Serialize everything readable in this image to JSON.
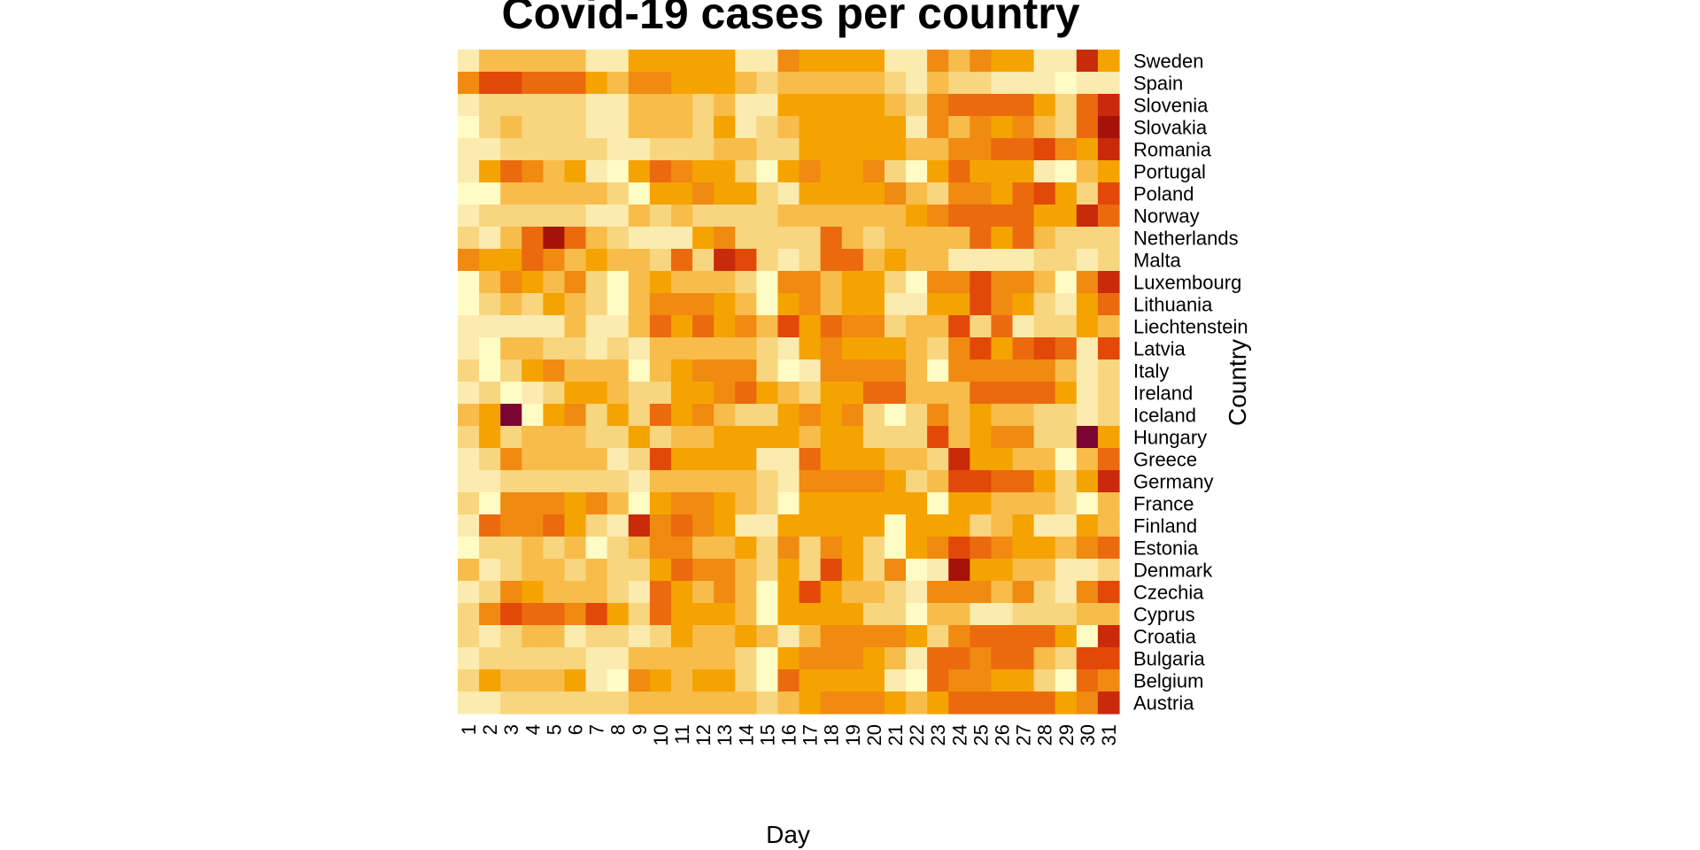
{
  "chart_data": {
    "type": "heatmap",
    "title": "Covid-19 cases per country",
    "xlabel": "Day",
    "ylabel": "Country",
    "x": [
      "1",
      "2",
      "3",
      "4",
      "5",
      "6",
      "7",
      "8",
      "9",
      "10",
      "11",
      "12",
      "13",
      "14",
      "15",
      "16",
      "17",
      "18",
      "19",
      "20",
      "21",
      "22",
      "23",
      "24",
      "25",
      "26",
      "27",
      "28",
      "29",
      "30",
      "31"
    ],
    "y": [
      "Sweden",
      "Spain",
      "Slovenia",
      "Slovakia",
      "Romania",
      "Portugal",
      "Poland",
      "Norway",
      "Netherlands",
      "Malta",
      "Luxembourg",
      "Lithuania",
      "Liechtenstein",
      "Latvia",
      "Italy",
      "Ireland",
      "Iceland",
      "Hungary",
      "Greece",
      "Germany",
      "France",
      "Finland",
      "Estonia",
      "Denmark",
      "Czechia",
      "Cyprus",
      "Croatia",
      "Bulgaria",
      "Belgium",
      "Austria"
    ],
    "palette": [
      "#FFFBC4",
      "#FCEBAE",
      "#F8D57F",
      "#F7BC4A",
      "#F5A300",
      "#F08A10",
      "#EB6A0E",
      "#E24808",
      "#C82A0A",
      "#A51208",
      "#7C0432"
    ],
    "values": [
      [
        1,
        3,
        3,
        3,
        3,
        3,
        1,
        1,
        4,
        4,
        4,
        4,
        4,
        1,
        1,
        5,
        4,
        4,
        4,
        4,
        1,
        1,
        5,
        3,
        5,
        4,
        4,
        1,
        1,
        8,
        4
      ],
      [
        5,
        7,
        7,
        6,
        6,
        6,
        4,
        3,
        5,
        5,
        4,
        4,
        4,
        3,
        2,
        3,
        3,
        3,
        3,
        3,
        2,
        1,
        3,
        2,
        2,
        1,
        1,
        1,
        0,
        1,
        1
      ],
      [
        1,
        2,
        2,
        2,
        2,
        2,
        1,
        1,
        3,
        3,
        3,
        2,
        3,
        1,
        1,
        4,
        4,
        4,
        4,
        4,
        3,
        2,
        5,
        6,
        6,
        6,
        6,
        4,
        2,
        6,
        8
      ],
      [
        0,
        2,
        3,
        2,
        2,
        2,
        1,
        1,
        3,
        3,
        3,
        2,
        4,
        1,
        2,
        3,
        4,
        4,
        4,
        4,
        4,
        1,
        5,
        3,
        5,
        4,
        5,
        3,
        2,
        6,
        9
      ],
      [
        1,
        1,
        2,
        2,
        2,
        2,
        2,
        1,
        1,
        2,
        2,
        2,
        3,
        3,
        2,
        2,
        4,
        4,
        4,
        4,
        4,
        3,
        3,
        5,
        5,
        6,
        6,
        7,
        5,
        4,
        8
      ],
      [
        1,
        4,
        6,
        5,
        3,
        4,
        1,
        0,
        4,
        6,
        5,
        4,
        4,
        2,
        0,
        4,
        5,
        4,
        4,
        5,
        2,
        0,
        4,
        6,
        4,
        4,
        4,
        1,
        0,
        3,
        4
      ],
      [
        0,
        0,
        3,
        3,
        3,
        3,
        3,
        2,
        0,
        4,
        4,
        5,
        4,
        4,
        2,
        1,
        4,
        4,
        4,
        4,
        5,
        3,
        2,
        5,
        5,
        4,
        6,
        7,
        4,
        2,
        7
      ],
      [
        1,
        2,
        2,
        2,
        2,
        2,
        1,
        1,
        3,
        2,
        3,
        2,
        2,
        2,
        2,
        3,
        3,
        3,
        3,
        3,
        3,
        4,
        5,
        6,
        6,
        6,
        6,
        4,
        4,
        8,
        6
      ],
      [
        2,
        1,
        3,
        6,
        9,
        6,
        3,
        2,
        1,
        1,
        1,
        4,
        5,
        2,
        2,
        2,
        2,
        6,
        3,
        2,
        3,
        3,
        3,
        3,
        6,
        4,
        6,
        3,
        2,
        2,
        2
      ],
      [
        5,
        4,
        4,
        6,
        5,
        3,
        4,
        3,
        3,
        2,
        6,
        2,
        8,
        7,
        2,
        1,
        2,
        6,
        6,
        3,
        4,
        3,
        3,
        1,
        1,
        1,
        1,
        2,
        2,
        1,
        2
      ],
      [
        0,
        3,
        5,
        4,
        3,
        5,
        2,
        0,
        3,
        4,
        3,
        3,
        3,
        2,
        0,
        5,
        5,
        3,
        4,
        4,
        2,
        0,
        5,
        5,
        7,
        5,
        5,
        3,
        0,
        5,
        8
      ],
      [
        0,
        2,
        3,
        2,
        4,
        3,
        2,
        0,
        3,
        5,
        5,
        5,
        4,
        3,
        0,
        4,
        5,
        3,
        4,
        4,
        1,
        1,
        4,
        4,
        7,
        5,
        4,
        2,
        1,
        4,
        6
      ],
      [
        1,
        1,
        1,
        1,
        1,
        3,
        1,
        1,
        3,
        6,
        4,
        6,
        4,
        5,
        3,
        7,
        4,
        6,
        5,
        5,
        2,
        3,
        3,
        7,
        2,
        6,
        1,
        2,
        2,
        4,
        3
      ],
      [
        1,
        0,
        3,
        3,
        2,
        2,
        1,
        2,
        1,
        3,
        3,
        3,
        3,
        3,
        2,
        1,
        4,
        5,
        4,
        4,
        4,
        3,
        2,
        5,
        7,
        4,
        6,
        7,
        6,
        1,
        7
      ],
      [
        2,
        0,
        2,
        4,
        5,
        3,
        3,
        3,
        0,
        3,
        4,
        5,
        5,
        5,
        2,
        0,
        1,
        5,
        5,
        5,
        5,
        3,
        0,
        5,
        5,
        5,
        5,
        5,
        3,
        1,
        2
      ],
      [
        1,
        2,
        0,
        1,
        2,
        4,
        4,
        3,
        2,
        2,
        4,
        4,
        5,
        6,
        4,
        3,
        2,
        4,
        4,
        6,
        6,
        3,
        3,
        3,
        6,
        6,
        6,
        6,
        4,
        1,
        2
      ],
      [
        3,
        4,
        10,
        0,
        4,
        5,
        2,
        4,
        2,
        6,
        4,
        5,
        3,
        2,
        2,
        4,
        5,
        4,
        5,
        2,
        0,
        2,
        5,
        3,
        4,
        3,
        3,
        2,
        2,
        1,
        2
      ],
      [
        2,
        4,
        2,
        3,
        3,
        3,
        2,
        2,
        4,
        2,
        3,
        3,
        4,
        4,
        4,
        4,
        3,
        4,
        4,
        2,
        2,
        2,
        7,
        3,
        4,
        5,
        5,
        2,
        2,
        10,
        4
      ],
      [
        1,
        2,
        5,
        3,
        3,
        3,
        3,
        1,
        2,
        7,
        4,
        4,
        4,
        4,
        1,
        1,
        6,
        4,
        4,
        4,
        3,
        3,
        2,
        8,
        4,
        4,
        3,
        3,
        0,
        3,
        6
      ],
      [
        1,
        1,
        2,
        2,
        2,
        2,
        2,
        2,
        1,
        3,
        3,
        3,
        3,
        3,
        2,
        1,
        5,
        5,
        5,
        5,
        4,
        2,
        3,
        7,
        7,
        6,
        6,
        4,
        2,
        4,
        8
      ],
      [
        2,
        0,
        5,
        5,
        5,
        4,
        5,
        3,
        0,
        4,
        5,
        5,
        4,
        3,
        2,
        0,
        4,
        4,
        4,
        4,
        4,
        4,
        0,
        4,
        4,
        3,
        3,
        3,
        2,
        0,
        3
      ],
      [
        1,
        6,
        5,
        5,
        6,
        4,
        2,
        1,
        8,
        5,
        6,
        5,
        4,
        1,
        1,
        4,
        4,
        4,
        4,
        4,
        0,
        4,
        4,
        4,
        2,
        3,
        4,
        1,
        1,
        4,
        3
      ],
      [
        0,
        2,
        2,
        3,
        2,
        3,
        0,
        2,
        3,
        5,
        5,
        3,
        3,
        4,
        2,
        5,
        2,
        5,
        4,
        2,
        0,
        4,
        5,
        7,
        6,
        5,
        4,
        4,
        3,
        5,
        6
      ],
      [
        3,
        1,
        2,
        3,
        3,
        2,
        3,
        2,
        2,
        4,
        6,
        5,
        5,
        3,
        2,
        4,
        2,
        7,
        4,
        2,
        5,
        0,
        1,
        9,
        4,
        4,
        3,
        3,
        1,
        1,
        2
      ],
      [
        1,
        2,
        5,
        4,
        3,
        3,
        3,
        2,
        1,
        6,
        4,
        3,
        5,
        3,
        0,
        4,
        7,
        4,
        3,
        3,
        2,
        1,
        5,
        5,
        5,
        3,
        5,
        2,
        1,
        5,
        7
      ],
      [
        2,
        5,
        7,
        6,
        6,
        5,
        7,
        4,
        2,
        6,
        4,
        4,
        4,
        3,
        0,
        4,
        4,
        4,
        4,
        2,
        2,
        0,
        3,
        3,
        1,
        1,
        2,
        2,
        2,
        3,
        3
      ],
      [
        2,
        1,
        2,
        3,
        3,
        1,
        2,
        2,
        1,
        2,
        4,
        3,
        3,
        4,
        3,
        1,
        3,
        5,
        5,
        5,
        5,
        4,
        2,
        5,
        6,
        6,
        6,
        6,
        4,
        0,
        8
      ],
      [
        1,
        2,
        2,
        2,
        2,
        2,
        1,
        1,
        3,
        3,
        3,
        3,
        3,
        2,
        0,
        4,
        5,
        5,
        5,
        4,
        3,
        1,
        6,
        6,
        5,
        6,
        6,
        3,
        2,
        7,
        7
      ],
      [
        2,
        4,
        3,
        3,
        3,
        4,
        1,
        0,
        5,
        4,
        3,
        4,
        4,
        2,
        0,
        6,
        4,
        4,
        4,
        4,
        1,
        0,
        6,
        5,
        5,
        4,
        4,
        2,
        0,
        6,
        5
      ],
      [
        1,
        1,
        2,
        2,
        2,
        2,
        2,
        2,
        3,
        3,
        3,
        3,
        3,
        3,
        2,
        3,
        4,
        5,
        5,
        5,
        4,
        3,
        4,
        6,
        6,
        6,
        6,
        6,
        4,
        5,
        8
      ]
    ]
  }
}
